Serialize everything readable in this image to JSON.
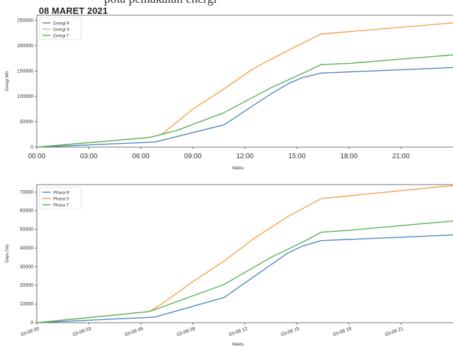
{
  "header_fragment": "pola pemakaian energi",
  "figure_title": "08 MARET 2021",
  "colors": {
    "R": "#4a86c0",
    "S": "#f4a04a",
    "T": "#55b055"
  },
  "chart_data": [
    {
      "type": "line",
      "xlabel": "Waktu",
      "ylabel": "Energi   Wh",
      "ylim": [
        0,
        260000
      ],
      "xlim": [
        0,
        24
      ],
      "xticks": [
        0,
        3,
        6,
        9,
        12,
        15,
        18,
        21
      ],
      "xtick_labels": [
        "00:00",
        "03:00",
        "06:00",
        "09:00",
        "12:00",
        "15:00",
        "18:00",
        "21:00"
      ],
      "yticks": [
        0,
        50000,
        100000,
        150000,
        200000,
        250000
      ],
      "ytick_labels": [
        "0",
        "50000",
        "100000",
        "150000",
        "200000",
        "250000"
      ],
      "legend": "upper-left",
      "series": [
        {
          "name": "Energi R",
          "key": "R",
          "x": [
            0,
            6.8,
            10.8,
            13.5,
            14.5,
            15.3,
            16.4,
            24
          ],
          "y": [
            0,
            10000,
            44000,
            105000,
            125000,
            137000,
            146000,
            157000
          ]
        },
        {
          "name": "Energi S",
          "key": "S",
          "x": [
            0,
            6.5,
            7.2,
            9,
            10.8,
            12.5,
            14.5,
            16.4,
            24
          ],
          "y": [
            0,
            19000,
            25000,
            75000,
            115000,
            155000,
            191000,
            223000,
            245000
          ]
        },
        {
          "name": "Energi T",
          "key": "T",
          "x": [
            0,
            6.5,
            8,
            10.8,
            13.5,
            15.5,
            16.4,
            18,
            24
          ],
          "y": [
            0,
            19000,
            32000,
            68000,
            117000,
            148000,
            163000,
            165000,
            182000
          ]
        }
      ]
    },
    {
      "type": "line",
      "xlabel": "Waktu",
      "ylabel": "Daya (Va)",
      "ylim": [
        0,
        74000
      ],
      "xlim": [
        0,
        24
      ],
      "xticks": [
        0,
        3,
        6,
        9,
        12,
        15,
        18,
        21
      ],
      "xtick_labels": [
        "03-08 00",
        "03-08 03",
        "03-08 06",
        "03-08 09",
        "03-08 12",
        "03-08 15",
        "03-08 18",
        "03-08 21"
      ],
      "yticks": [
        0,
        10000,
        20000,
        30000,
        40000,
        50000,
        60000,
        70000
      ],
      "ytick_labels": [
        "0",
        "10000",
        "20000",
        "30000",
        "40000",
        "50000",
        "60000",
        "70000"
      ],
      "legend": "upper-left",
      "series": [
        {
          "name": "Phasa R",
          "key": "R",
          "x": [
            0,
            6.8,
            10.8,
            13.5,
            14.5,
            15.3,
            16.4,
            24
          ],
          "y": [
            0,
            3000,
            13500,
            31000,
            37500,
            41000,
            44000,
            47000
          ]
        },
        {
          "name": "Phasa S",
          "key": "S",
          "x": [
            0,
            6.5,
            7.2,
            9,
            10.8,
            12.5,
            14.5,
            16.4,
            24
          ],
          "y": [
            0,
            6000,
            10000,
            22000,
            33000,
            45000,
            57000,
            66500,
            73500
          ]
        },
        {
          "name": "Phasa T",
          "key": "T",
          "x": [
            0,
            6.5,
            8,
            10.8,
            13.5,
            15.5,
            16.4,
            18,
            24
          ],
          "y": [
            0,
            6000,
            11000,
            20500,
            35000,
            44000,
            48500,
            49500,
            54500
          ]
        }
      ]
    }
  ]
}
